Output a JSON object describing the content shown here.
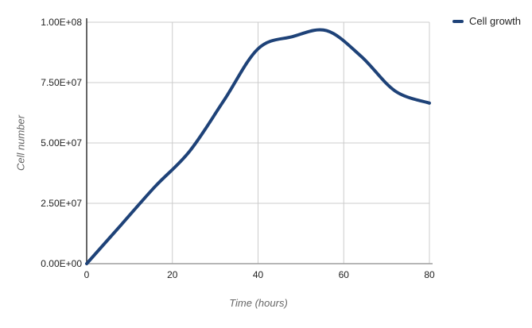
{
  "chart_data": {
    "type": "line",
    "title": "",
    "xlabel": "Time (hours)",
    "ylabel": "Cell number",
    "x": [
      0,
      8,
      16,
      24,
      32,
      40,
      48,
      56,
      64,
      72,
      80
    ],
    "series": [
      {
        "name": "Cell growth",
        "values": [
          0,
          16000000,
          32000000,
          46500000,
          67500000,
          89000000,
          94000000,
          96500000,
          86000000,
          71500000,
          66500000
        ],
        "color": "#1e4278",
        "line_width": 4,
        "smooth": true
      }
    ],
    "xlim": [
      0,
      80
    ],
    "ylim": [
      0,
      100000000
    ],
    "x_ticks": [
      0,
      20,
      40,
      60,
      80
    ],
    "x_tick_labels": [
      "0",
      "20",
      "40",
      "60",
      "80"
    ],
    "y_ticks": [
      0,
      25000000,
      50000000,
      75000000,
      100000000
    ],
    "y_tick_labels": [
      "0.00E+00",
      "2.50E+07",
      "5.00E+07",
      "7.50E+07",
      "1.00E+08"
    ],
    "grid": true,
    "legend_position": "top-right"
  },
  "legend": {
    "label": "Cell growth"
  },
  "colors": {
    "line": "#1e4278",
    "grid": "#cccccc",
    "y_axis_line": "#333333",
    "x_axis_line": "#9e9e9e",
    "tick_text": "#222222",
    "axis_title_text": "#666666",
    "legend_text": "#212121",
    "background": "#ffffff"
  }
}
